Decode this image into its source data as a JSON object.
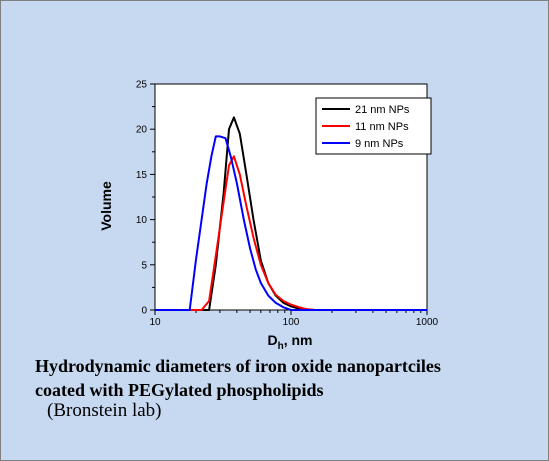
{
  "chart_data": {
    "type": "line",
    "xscale": "log",
    "xlim": [
      10,
      1000
    ],
    "ylim": [
      0,
      25
    ],
    "xlabel": "D",
    "xlabel_subscript": "h",
    "xlabel_unit": ", nm",
    "ylabel": "Volume",
    "xticks": [
      10,
      100,
      1000
    ],
    "xtick_labels": [
      "10",
      "100",
      "1000"
    ],
    "yticks": [
      0,
      5,
      10,
      15,
      20,
      25
    ],
    "ytick_labels": [
      "0",
      "5",
      "10",
      "15",
      "20",
      "25"
    ],
    "grid": false,
    "legend_position": "top-right",
    "series": [
      {
        "name": "21 nm NPs",
        "color": "#000000",
        "x": [
          10,
          25,
          28,
          32,
          35,
          38,
          42,
          47,
          53,
          60,
          68,
          77,
          88,
          100,
          115,
          130,
          150,
          1000
        ],
        "y": [
          0,
          0,
          5,
          13,
          20,
          21.3,
          19.5,
          15,
          10,
          5.5,
          3,
          1.6,
          0.8,
          0.4,
          0.15,
          0.05,
          0,
          0
        ]
      },
      {
        "name": "11 nm NPs",
        "color": "#ff0000",
        "x": [
          10,
          22,
          25,
          28,
          32,
          35,
          38,
          42,
          47,
          53,
          60,
          68,
          77,
          88,
          100,
          115,
          130,
          150,
          1000
        ],
        "y": [
          0,
          0,
          1,
          6,
          12,
          16,
          17,
          15,
          11.5,
          8,
          5,
          3,
          1.7,
          1,
          0.6,
          0.3,
          0.1,
          0,
          0
        ]
      },
      {
        "name": "9 nm NPs",
        "color": "#0000ff",
        "x": [
          10,
          18,
          20,
          22,
          24,
          26,
          28,
          30,
          33,
          36,
          40,
          45,
          50,
          55,
          60,
          68,
          77,
          88,
          100,
          1000
        ],
        "y": [
          0,
          0,
          5.5,
          10,
          14,
          17,
          19.2,
          19.2,
          19,
          17,
          14,
          10,
          6.8,
          4.5,
          3,
          1.6,
          0.8,
          0.3,
          0,
          0
        ]
      }
    ]
  },
  "caption": {
    "line1": "Hydrodynamic diameters of iron oxide nanopartciles",
    "line2": "coated with PEGylated phospholipids"
  },
  "credit": "(Bronstein lab)"
}
